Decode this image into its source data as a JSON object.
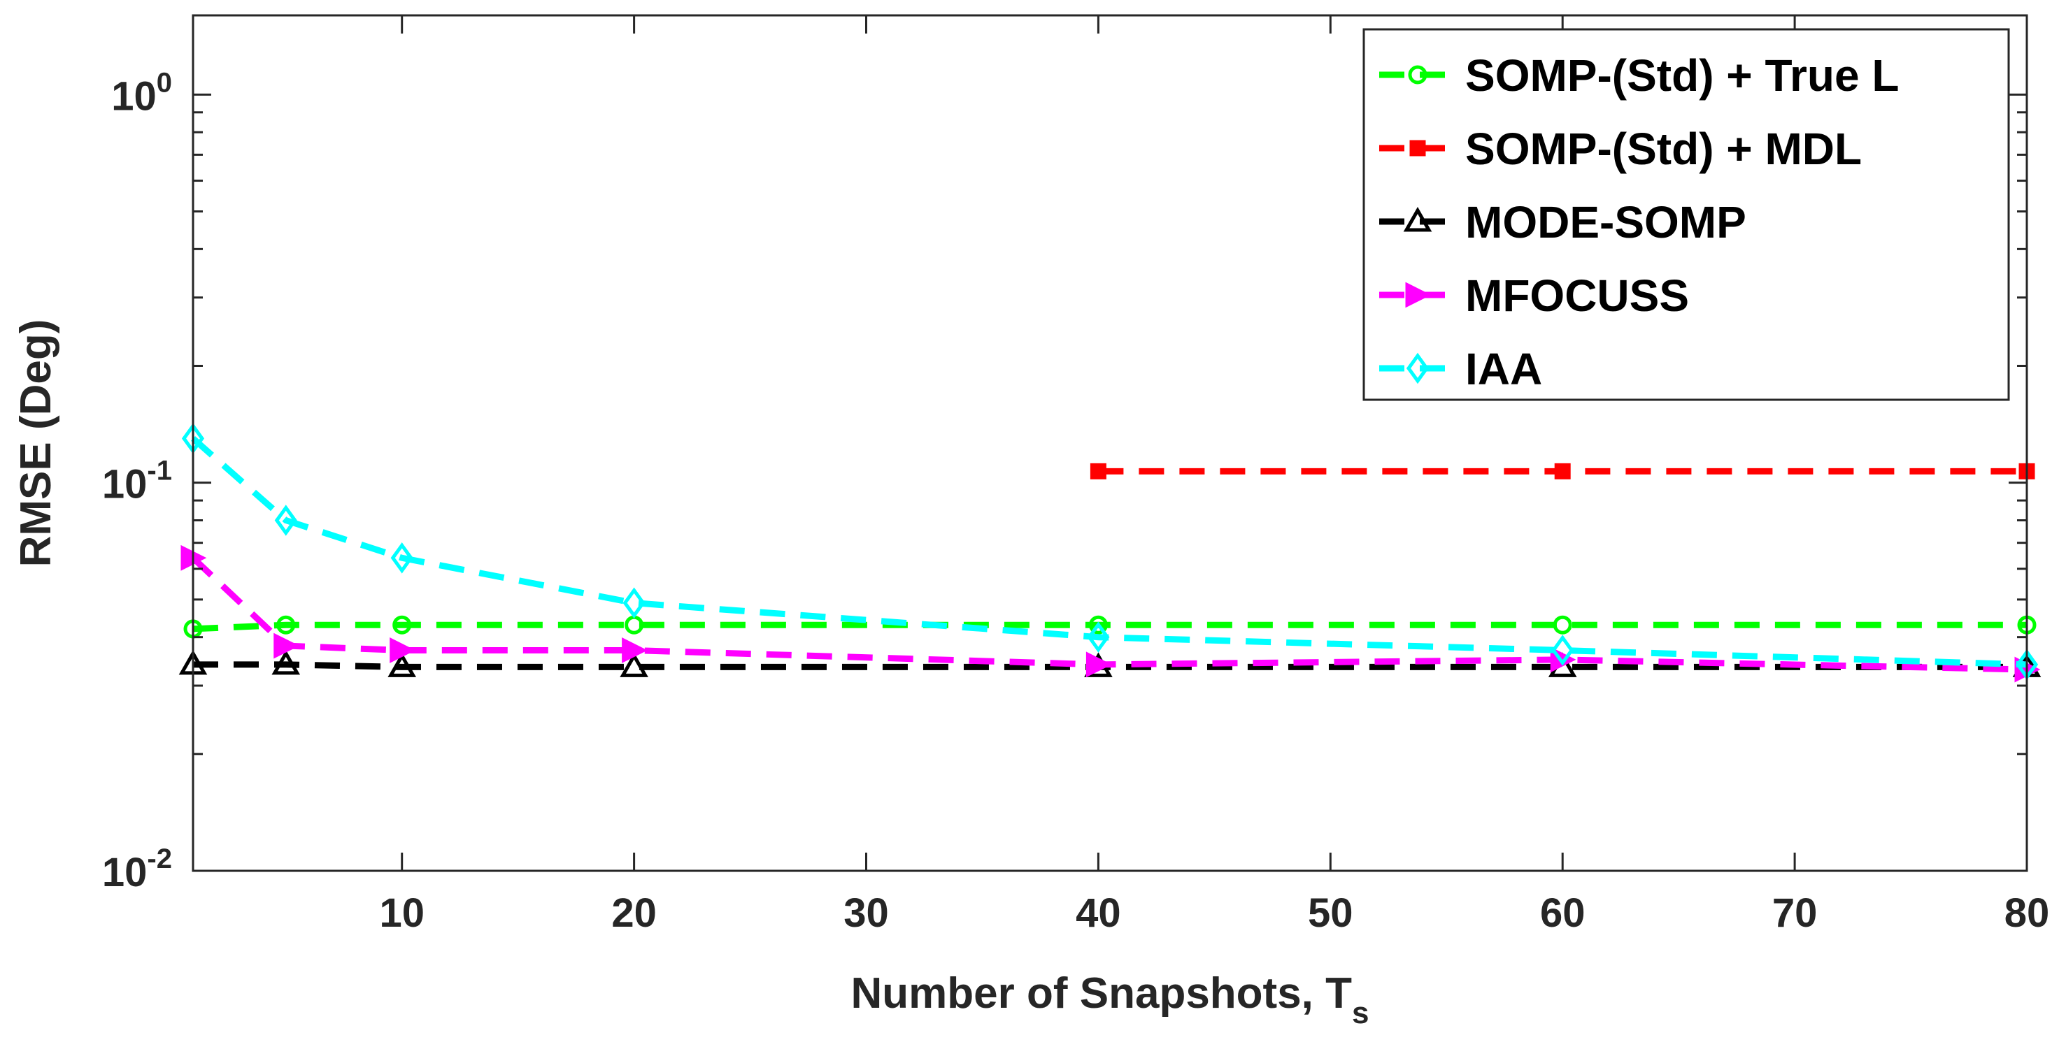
{
  "chart_data": {
    "type": "line",
    "title": "",
    "xlabel": "Number of Snapshots, T",
    "xlabel_subscript": "s",
    "ylabel": "RMSE (Deg)",
    "xlim": [
      1,
      80
    ],
    "ylim": [
      0.01,
      1.6
    ],
    "yscale": "log",
    "grid": false,
    "legend_position": "top-right",
    "x_ticks": [
      10,
      20,
      30,
      40,
      50,
      60,
      70,
      80
    ],
    "x_tick_labels": [
      "10",
      "20",
      "30",
      "40",
      "50",
      "60",
      "70",
      "80"
    ],
    "y_ticks": [
      {
        "value": 0.01,
        "base": "10",
        "exp": "-2"
      },
      {
        "value": 0.1,
        "base": "10",
        "exp": "-1"
      },
      {
        "value": 1,
        "base": "10",
        "exp": "0"
      }
    ],
    "series": [
      {
        "name": "SOMP-(Std) + True L",
        "color": "#00ff00",
        "marker": "circle",
        "x": [
          1,
          5,
          10,
          20,
          40,
          60,
          80
        ],
        "y": [
          0.042,
          0.043,
          0.043,
          0.043,
          0.043,
          0.043,
          0.043
        ]
      },
      {
        "name": "SOMP-(Std) + MDL",
        "color": "#ff0000",
        "marker": "square",
        "x": [
          40,
          60,
          80
        ],
        "y": [
          0.107,
          0.107,
          0.107
        ]
      },
      {
        "name": "MODE-SOMP",
        "color": "#000000",
        "marker": "triangle",
        "x": [
          1,
          5,
          10,
          20,
          40,
          60,
          80
        ],
        "y": [
          0.034,
          0.034,
          0.0335,
          0.0335,
          0.0335,
          0.0335,
          0.0335
        ]
      },
      {
        "name": "MFOCUSS",
        "color": "#ff00ff",
        "marker": "triangle-right",
        "x": [
          1,
          5,
          10,
          20,
          40,
          60,
          80
        ],
        "y": [
          0.064,
          0.038,
          0.037,
          0.037,
          0.034,
          0.035,
          0.033
        ]
      },
      {
        "name": "IAA",
        "color": "#00ffff",
        "marker": "diamond",
        "x": [
          1,
          5,
          10,
          20,
          40,
          60,
          80
        ],
        "y": [
          0.13,
          0.08,
          0.064,
          0.049,
          0.04,
          0.037,
          0.034
        ]
      }
    ]
  }
}
